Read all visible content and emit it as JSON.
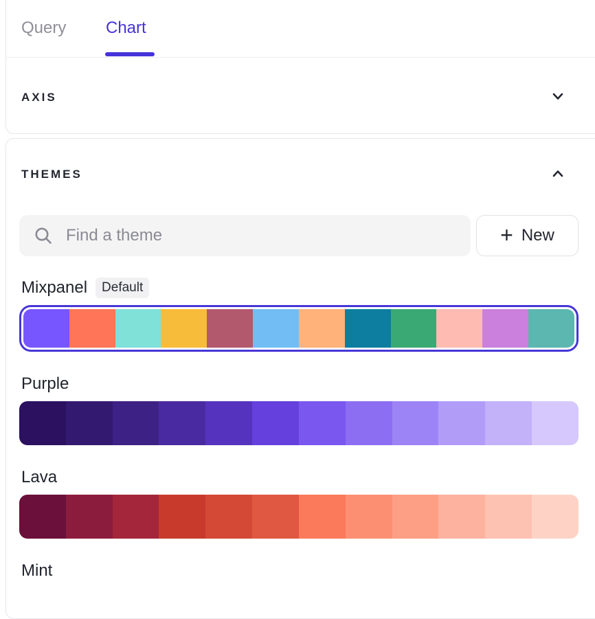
{
  "tabs": [
    {
      "label": "Query",
      "active": false
    },
    {
      "label": "Chart",
      "active": true
    }
  ],
  "sections": {
    "axis": {
      "title": "AXIS",
      "state": "collapsed",
      "icon": "chevron-down-icon"
    },
    "themes": {
      "title": "THEMES",
      "state": "expanded",
      "icon": "chevron-up-icon"
    }
  },
  "search": {
    "placeholder": "Find a theme",
    "icon": "search-icon"
  },
  "new_button": {
    "plus": "+",
    "label": "New"
  },
  "themes": [
    {
      "name": "Mixpanel",
      "badge": "Default",
      "selected": true,
      "colors": [
        "#7856FF",
        "#FF7557",
        "#80E1D9",
        "#F8BC3B",
        "#B2596E",
        "#72BEF4",
        "#FFB27A",
        "#0D7EA0",
        "#3BA974",
        "#FEBBB2",
        "#CA80DC",
        "#5BB7AF"
      ]
    },
    {
      "name": "Purple",
      "badge": null,
      "selected": false,
      "colors": [
        "#2B1160",
        "#341970",
        "#3E2185",
        "#4A2AA0",
        "#5633BE",
        "#6540DC",
        "#7A57EE",
        "#8C6EF3",
        "#9D84F6",
        "#B19DF8",
        "#C3B1FA",
        "#D6C8FC"
      ]
    },
    {
      "name": "Lava",
      "badge": null,
      "selected": false,
      "colors": [
        "#6B0F3B",
        "#8C1C3E",
        "#A4263A",
        "#C83A2C",
        "#D44936",
        "#E05842",
        "#FA7A5B",
        "#FC8F72",
        "#FD9F85",
        "#FDB2A0",
        "#FEC2B2",
        "#FED3C6"
      ]
    },
    {
      "name": "Mint",
      "badge": null,
      "selected": false,
      "colors": []
    }
  ],
  "colors": {
    "accent": "#4533D9",
    "selection_border": "#4636D8",
    "tab_inactive": "#8F8F98",
    "text": "#23262E",
    "input_bg": "#F4F4F5",
    "card_border": "#E7E7EA",
    "badge_bg": "#F1F1F3"
  }
}
